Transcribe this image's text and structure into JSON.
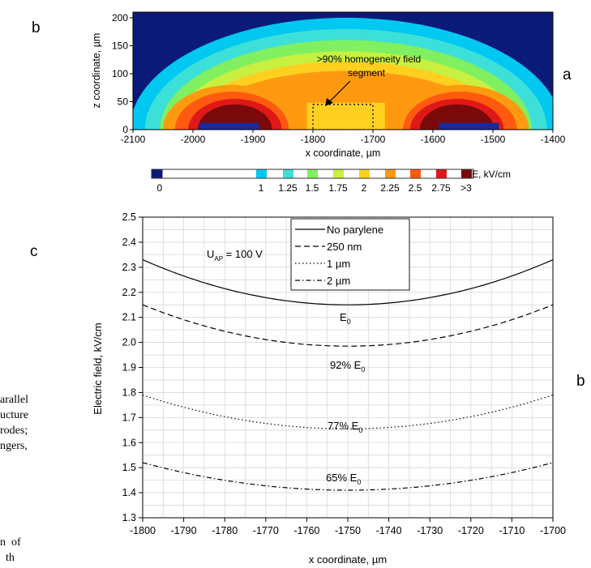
{
  "panel_labels": {
    "top_left": "b",
    "top_right": "a",
    "mid_left": "c",
    "mid_right": "b"
  },
  "background_text": [
    "arallel",
    "ucture",
    "rodes;",
    "ngers,",
    "",
    "",
    "n  of",
    "  th"
  ],
  "chart_data": [
    {
      "type": "heatmap",
      "title": "",
      "xlabel": "x coordinate, µm",
      "ylabel": "z coordinate, µm",
      "xlim": [
        -2100,
        -1400
      ],
      "ylim": [
        0,
        210
      ],
      "xticks": [
        "-2100",
        "-2000",
        "-1900",
        "-1800",
        "-1700",
        "-1600",
        "-1500",
        "-1400"
      ],
      "yticks": [
        "0",
        "50",
        "100",
        "150",
        "200"
      ],
      "annotation": ">90% homogeneity field segment",
      "annotation_lines": [
        ">90% homogeneity field",
        "segment"
      ],
      "electrodes_x": [
        [
          -1990,
          -1890
        ],
        [
          -1590,
          -1490
        ]
      ],
      "homogeneity_box": {
        "x": [
          -1800,
          -1700
        ],
        "z": [
          0,
          45
        ]
      },
      "colorbar": {
        "label": "E, kV/cm",
        "levels": [
          "0",
          "1",
          "1.25",
          "1.5",
          "1.75",
          "2",
          "2.25",
          "2.5",
          "2.75",
          ">3"
        ],
        "colors": [
          "#0a1a78",
          "#00c8f0",
          "#3de0d8",
          "#80f060",
          "#c8f040",
          "#ffd020",
          "#ff9a10",
          "#ff5a10",
          "#e01818",
          "#7a0a0a"
        ]
      }
    },
    {
      "type": "line",
      "xlabel": "x coordinate, µm",
      "ylabel": "Electric field, kV/cm",
      "xlim": [
        -1800,
        -1700
      ],
      "ylim": [
        1.3,
        2.5
      ],
      "xticks": [
        "-1800",
        "-1790",
        "-1780",
        "-1770",
        "-1760",
        "-1750",
        "-1740",
        "-1730",
        "-1720",
        "-1710",
        "-1700"
      ],
      "yticks": [
        "1.3",
        "1.4",
        "1.5",
        "1.6",
        "1.7",
        "1.8",
        "1.9",
        "2.0",
        "2.1",
        "2.2",
        "2.3",
        "2.4",
        "2.5"
      ],
      "grid": true,
      "legend_position": "top-center",
      "annotation_voltage": "U_AP = 100 V",
      "series": [
        {
          "name": "No parylene",
          "style": "solid",
          "x": [
            -1800,
            -1775,
            -1750,
            -1725,
            -1700
          ],
          "y": [
            2.33,
            2.21,
            2.15,
            2.21,
            2.33
          ],
          "label": "E0"
        },
        {
          "name": "250 nm",
          "style": "dashed",
          "x": [
            -1800,
            -1775,
            -1750,
            -1725,
            -1700
          ],
          "y": [
            2.15,
            2.03,
            1.985,
            2.03,
            2.15
          ],
          "label": "92% E0"
        },
        {
          "name": "1 µm",
          "style": "dotted",
          "x": [
            -1800,
            -1775,
            -1750,
            -1725,
            -1700
          ],
          "y": [
            1.79,
            1.69,
            1.655,
            1.69,
            1.79
          ],
          "label": "77% E0"
        },
        {
          "name": "2 µm",
          "style": "dashdot",
          "x": [
            -1800,
            -1775,
            -1750,
            -1725,
            -1700
          ],
          "y": [
            1.52,
            1.44,
            1.41,
            1.44,
            1.52
          ],
          "label": "65% E0"
        }
      ]
    }
  ]
}
